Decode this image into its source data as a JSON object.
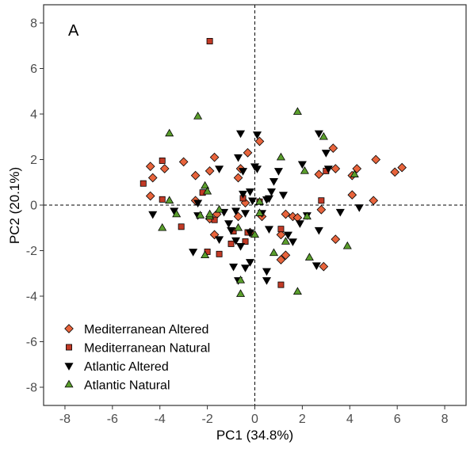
{
  "chart_data": {
    "type": "scatter",
    "panel_label": "A",
    "xlabel": "PC1 (34.8%)",
    "ylabel": "PC2 (20.1%)",
    "xlim": [
      -8.9,
      8.9
    ],
    "ylim": [
      -8.8,
      8.8
    ],
    "xticks": [
      -8,
      -6,
      -4,
      -2,
      0,
      2,
      4,
      6,
      8
    ],
    "yticks": [
      -8,
      -6,
      -4,
      -2,
      0,
      2,
      4,
      6,
      8
    ],
    "reference_lines": {
      "x": 0,
      "y": 0,
      "style": "dashed"
    },
    "grid": false,
    "legend_placement": "bottom-left",
    "series": [
      {
        "name": "Mediterranean Altered",
        "marker": "diamond",
        "color": "#E8643C",
        "points": [
          [
            5.1,
            2.0
          ],
          [
            6.2,
            1.65
          ],
          [
            5.9,
            1.45
          ],
          [
            4.3,
            1.6
          ],
          [
            4.1,
            1.3
          ],
          [
            3.4,
            1.6
          ],
          [
            3.3,
            2.5
          ],
          [
            2.7,
            1.35
          ],
          [
            5.0,
            0.2
          ],
          [
            4.1,
            0.45
          ],
          [
            2.8,
            -0.2
          ],
          [
            3.4,
            -1.5
          ],
          [
            2.9,
            -2.7
          ],
          [
            1.3,
            -0.4
          ],
          [
            1.6,
            -0.5
          ],
          [
            1.8,
            -0.55
          ],
          [
            1.1,
            -1.3
          ],
          [
            1.3,
            -2.2
          ],
          [
            1.1,
            -2.4
          ],
          [
            0.2,
            2.8
          ],
          [
            -0.3,
            2.3
          ],
          [
            -0.6,
            1.6
          ],
          [
            -0.7,
            1.2
          ],
          [
            -0.4,
            0.1
          ],
          [
            -1.7,
            2.1
          ],
          [
            -1.9,
            1.5
          ],
          [
            -2.5,
            1.3
          ],
          [
            -3.0,
            1.9
          ],
          [
            -3.8,
            1.6
          ],
          [
            -4.3,
            1.2
          ],
          [
            -4.4,
            0.4
          ],
          [
            -4.4,
            1.7
          ],
          [
            -2.5,
            0.2
          ],
          [
            -1.9,
            -0.6
          ],
          [
            -1.7,
            -1.3
          ],
          [
            -1.6,
            -0.4
          ],
          [
            -0.7,
            -0.5
          ],
          [
            -0.2,
            -1.2
          ],
          [
            0.3,
            -0.5
          ]
        ]
      },
      {
        "name": "Mediterranean Natural",
        "marker": "square",
        "color": "#C23A26",
        "points": [
          [
            -1.9,
            7.2
          ],
          [
            -4.7,
            0.95
          ],
          [
            -3.9,
            1.95
          ],
          [
            -3.9,
            0.25
          ],
          [
            -3.1,
            -0.95
          ],
          [
            -2.0,
            -2.05
          ],
          [
            -1.7,
            -0.65
          ],
          [
            -1.5,
            -2.15
          ],
          [
            -0.9,
            -1.15
          ],
          [
            -0.3,
            -1.2
          ],
          [
            -0.5,
            0.3
          ],
          [
            -0.4,
            -1.6
          ],
          [
            1.1,
            -1.05
          ],
          [
            1.1,
            -3.5
          ],
          [
            2.8,
            0.2
          ],
          [
            3.0,
            1.5
          ],
          [
            0.2,
            0.15
          ],
          [
            -2.2,
            0.55
          ],
          [
            -1.0,
            -1.7
          ]
        ]
      },
      {
        "name": "Atlantic Altered",
        "marker": "triangle-down",
        "color": "#000000",
        "points": [
          [
            -4.3,
            -0.4
          ],
          [
            -3.4,
            -0.25
          ],
          [
            -2.6,
            -2.05
          ],
          [
            -2.4,
            0.1
          ],
          [
            -2.4,
            -0.45
          ],
          [
            -1.5,
            1.6
          ],
          [
            -1.3,
            -0.3
          ],
          [
            -1.1,
            -0.8
          ],
          [
            -1.0,
            -1.1
          ],
          [
            -1.5,
            -1.5
          ],
          [
            -0.8,
            -0.25
          ],
          [
            -0.8,
            -1.55
          ],
          [
            -0.6,
            -1.8
          ],
          [
            -0.4,
            -2.75
          ],
          [
            -0.2,
            -2.5
          ],
          [
            -0.4,
            -0.35
          ],
          [
            -0.2,
            -1.2
          ],
          [
            -0.9,
            -2.7
          ],
          [
            -0.7,
            -3.3
          ],
          [
            -0.6,
            3.15
          ],
          [
            -0.7,
            2.1
          ],
          [
            -0.5,
            1.5
          ],
          [
            -0.5,
            0.5
          ],
          [
            0.1,
            3.1
          ],
          [
            0.0,
            1.7
          ],
          [
            0.1,
            1.6
          ],
          [
            -0.2,
            0.6
          ],
          [
            -0.1,
            0.2
          ],
          [
            0.3,
            -0.35
          ],
          [
            0.5,
            0.25
          ],
          [
            0.7,
            0.6
          ],
          [
            0.8,
            1.05
          ],
          [
            0.6,
            -1.05
          ],
          [
            0.5,
            -2.9
          ],
          [
            0.5,
            -3.3
          ],
          [
            1.0,
            1.5
          ],
          [
            1.2,
            0.45
          ],
          [
            1.4,
            -1.3
          ],
          [
            1.6,
            -1.6
          ],
          [
            1.9,
            -0.8
          ],
          [
            2.2,
            -0.45
          ],
          [
            2.7,
            3.15
          ],
          [
            2.7,
            -1.1
          ],
          [
            3.0,
            2.3
          ],
          [
            3.1,
            1.6
          ],
          [
            2.6,
            -2.65
          ],
          [
            3.6,
            -0.3
          ],
          [
            4.4,
            -0.1
          ],
          [
            2.0,
            1.8
          ],
          [
            0.6,
            0.3
          ]
        ]
      },
      {
        "name": "Atlantic Natural",
        "marker": "triangle-up",
        "color": "#5A9E2C",
        "points": [
          [
            -3.6,
            3.15
          ],
          [
            -2.4,
            3.9
          ],
          [
            -3.9,
            -1.0
          ],
          [
            -3.6,
            0.2
          ],
          [
            -3.3,
            -0.4
          ],
          [
            -2.3,
            -0.45
          ],
          [
            -2.1,
            0.85
          ],
          [
            -2.0,
            0.6
          ],
          [
            -1.9,
            -0.5
          ],
          [
            -2.1,
            -2.2
          ],
          [
            -1.5,
            -0.2
          ],
          [
            -0.6,
            -3.3
          ],
          [
            -0.6,
            -3.9
          ],
          [
            0.2,
            0.15
          ],
          [
            0.2,
            -0.35
          ],
          [
            0.8,
            -2.1
          ],
          [
            1.3,
            -1.6
          ],
          [
            1.8,
            4.1
          ],
          [
            2.2,
            -0.5
          ],
          [
            1.8,
            -3.8
          ],
          [
            2.3,
            -2.3
          ],
          [
            2.9,
            3.0
          ],
          [
            2.1,
            1.5
          ],
          [
            4.2,
            1.35
          ],
          [
            3.9,
            -1.8
          ],
          [
            -1.9,
            -0.4
          ],
          [
            0.0,
            -1.3
          ],
          [
            -0.7,
            -1.0
          ],
          [
            1.1,
            2.1
          ]
        ]
      }
    ]
  },
  "legend": {
    "items": [
      {
        "label": "Mediterranean Altered",
        "marker": "diamond",
        "color": "#E8643C"
      },
      {
        "label": "Mediterranean Natural",
        "marker": "square",
        "color": "#C23A26"
      },
      {
        "label": "Atlantic Altered",
        "marker": "triangle-down",
        "color": "#000000"
      },
      {
        "label": "Atlantic Natural",
        "marker": "triangle-up",
        "color": "#5A9E2C"
      }
    ]
  }
}
